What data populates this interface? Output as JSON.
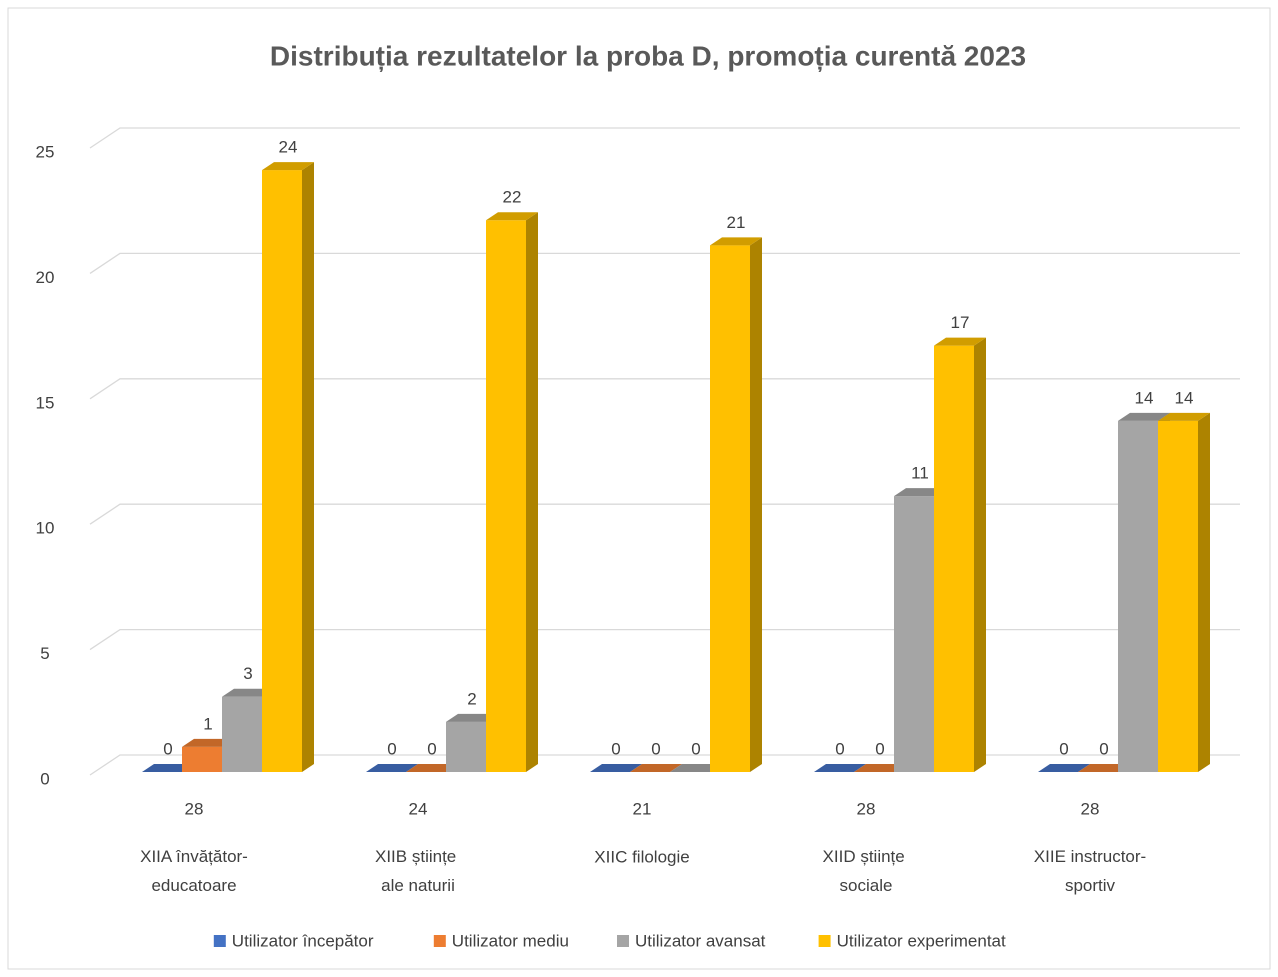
{
  "chart_data": {
    "type": "bar3d",
    "title": "Distribuția rezultatelor la proba D, promoția curentă 2023",
    "categories": [
      "XIIA învățător-educatoare",
      "XIIB științe ale naturii",
      "XIIC filologie",
      "XIID științe sociale",
      "XIIE instructor-sportiv"
    ],
    "category_totals": [
      28,
      24,
      21,
      28,
      28
    ],
    "series": [
      {
        "name": "Utilizator începător",
        "color": "#4472c4",
        "values": [
          0,
          0,
          0,
          0,
          0
        ]
      },
      {
        "name": "Utilizator mediu",
        "color": "#ed7d31",
        "values": [
          1,
          0,
          0,
          0,
          0
        ]
      },
      {
        "name": "Utilizator avansat",
        "color": "#a5a5a5",
        "values": [
          3,
          2,
          0,
          11,
          14
        ]
      },
      {
        "name": "Utilizator experimentat",
        "color": "#ffc000",
        "values": [
          24,
          22,
          21,
          17,
          14
        ]
      }
    ],
    "value_labels": [
      [
        "0",
        "0",
        "0",
        "0",
        "0"
      ],
      [
        "1",
        "0",
        "0",
        "0",
        "0"
      ],
      [
        "3",
        "2",
        "0",
        "11",
        "14"
      ],
      [
        "24",
        "22",
        "21",
        "17",
        "14"
      ]
    ],
    "ylim": [
      0,
      25
    ],
    "yticks": [
      0,
      5,
      10,
      15,
      20,
      25
    ],
    "grid": true,
    "legend": "bottom"
  }
}
